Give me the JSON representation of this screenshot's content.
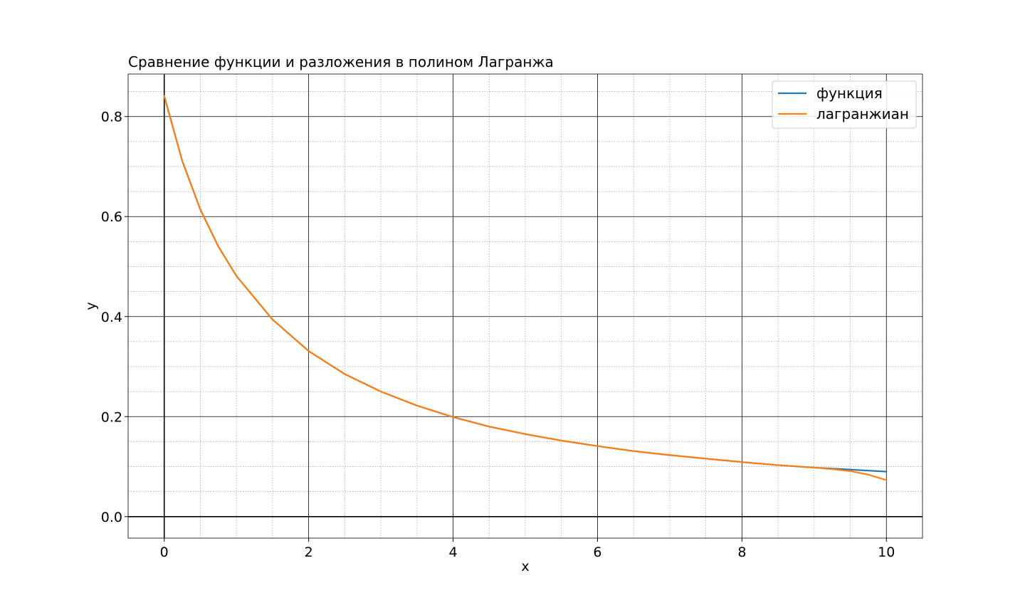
{
  "chart_data": {
    "type": "line",
    "title": "Сравнение функции и разложения в полином Лагранжа",
    "xlabel": "x",
    "ylabel": "y",
    "xlim": [
      -0.5,
      10.5
    ],
    "ylim": [
      -0.043,
      0.885
    ],
    "xticks": [
      0,
      2,
      4,
      6,
      8,
      10
    ],
    "xtick_labels": [
      "0",
      "2",
      "4",
      "6",
      "8",
      "10"
    ],
    "yticks": [
      0.0,
      0.2,
      0.4,
      0.6,
      0.8
    ],
    "ytick_labels": [
      "0.0",
      "0.2",
      "0.4",
      "0.6",
      "0.8"
    ],
    "x_minor_step": 0.5,
    "y_minor_step": 0.05,
    "grid": true,
    "zero_lines": true,
    "legend_position": "top-right",
    "series": [
      {
        "name": "функция",
        "color": "#1f77b4",
        "x": [
          0,
          0.25,
          0.5,
          0.75,
          1,
          1.5,
          2,
          2.5,
          3,
          3.5,
          4,
          4.5,
          5,
          5.5,
          6,
          6.5,
          7,
          7.5,
          8,
          8.5,
          9,
          9.5,
          10
        ],
        "y": [
          0.841,
          0.711,
          0.614,
          0.54,
          0.481,
          0.394,
          0.331,
          0.285,
          0.25,
          0.222,
          0.199,
          0.18,
          0.165,
          0.152,
          0.141,
          0.131,
          0.123,
          0.116,
          0.109,
          0.103,
          0.098,
          0.094,
          0.09
        ]
      },
      {
        "name": "лагранжиан",
        "color": "#ff7f0e",
        "x": [
          0,
          0.25,
          0.5,
          0.75,
          1,
          1.5,
          2,
          2.5,
          3,
          3.5,
          4,
          4.5,
          5,
          5.5,
          6,
          6.5,
          7,
          7.5,
          8,
          8.5,
          9,
          9.25,
          9.5,
          9.75,
          10
        ],
        "y": [
          0.841,
          0.711,
          0.614,
          0.54,
          0.481,
          0.394,
          0.331,
          0.285,
          0.25,
          0.222,
          0.199,
          0.18,
          0.165,
          0.152,
          0.141,
          0.131,
          0.123,
          0.116,
          0.109,
          0.103,
          0.098,
          0.095,
          0.091,
          0.084,
          0.073
        ]
      }
    ]
  }
}
